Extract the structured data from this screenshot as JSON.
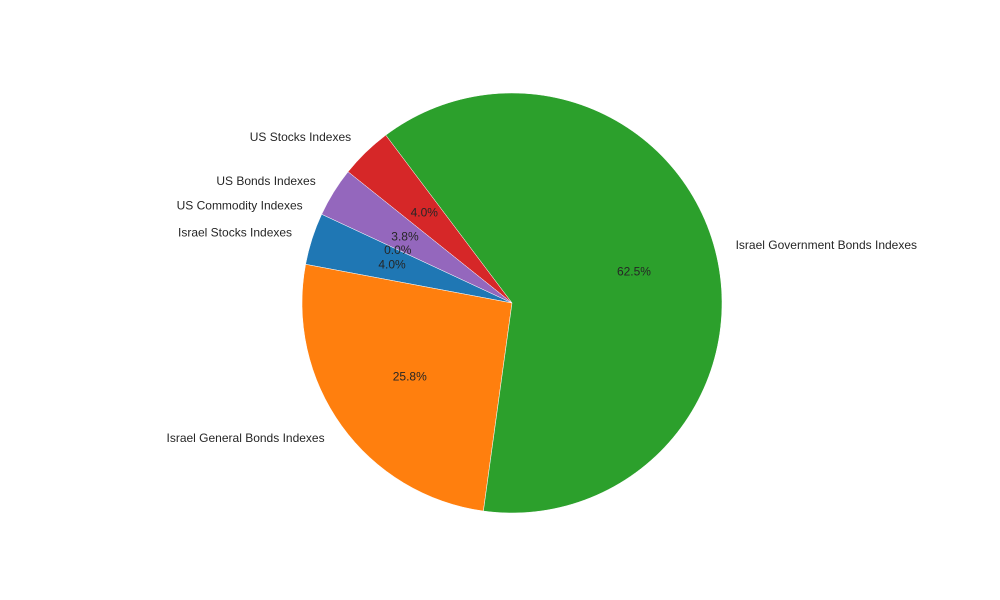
{
  "chart_data": {
    "type": "pie",
    "title": "",
    "slices": [
      {
        "label": "Israel Stocks Indexes",
        "value": 4.0,
        "pct_label": "4.0%",
        "color": "#1f77b4"
      },
      {
        "label": "Israel General Bonds Indexes",
        "value": 25.8,
        "pct_label": "25.8%",
        "color": "#ff7f0e"
      },
      {
        "label": "Israel Government Bonds Indexes",
        "value": 62.5,
        "pct_label": "62.5%",
        "color": "#2ca02c"
      },
      {
        "label": "US Stocks Indexes",
        "value": 4.0,
        "pct_label": "4.0%",
        "color": "#d62728"
      },
      {
        "label": "US Bonds Indexes",
        "value": 3.8,
        "pct_label": "3.8%",
        "color": "#9467bd"
      },
      {
        "label": "US Commodity Indexes",
        "value": 0.0,
        "pct_label": "0.0%",
        "color": "#8c564b"
      }
    ],
    "start_angle_deg": 155,
    "direction": "counterclockwise"
  }
}
